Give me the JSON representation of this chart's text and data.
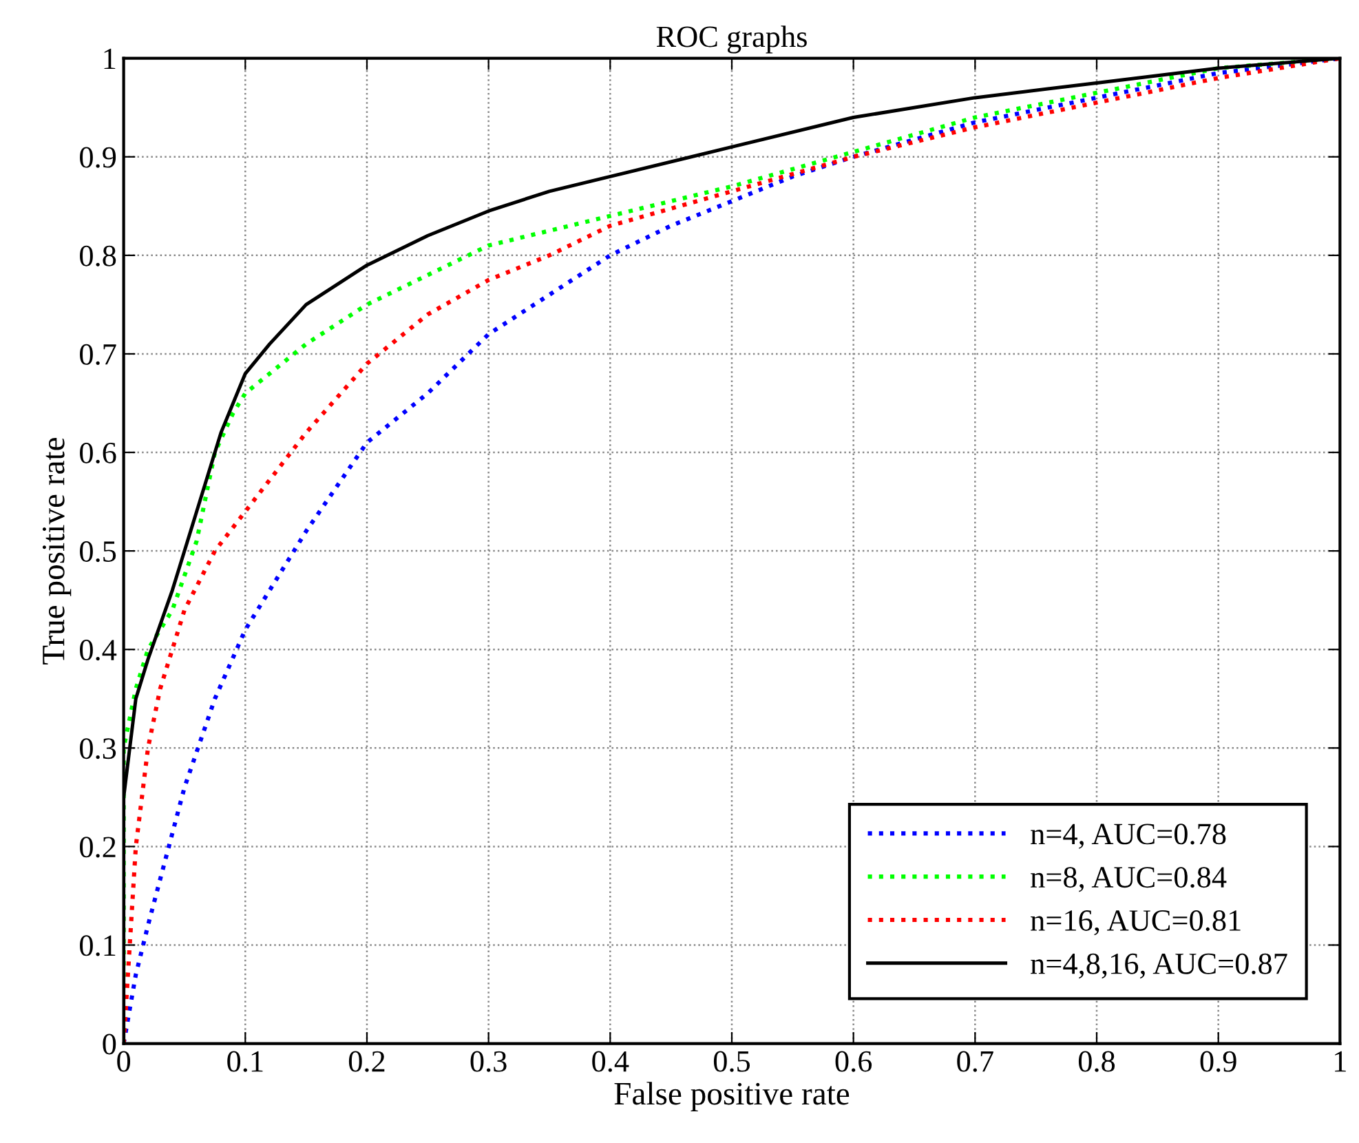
{
  "chart_data": {
    "type": "line",
    "title": "ROC graphs",
    "xlabel": "False positive rate",
    "ylabel": "True positive rate",
    "xlim": [
      0,
      1
    ],
    "ylim": [
      0,
      1
    ],
    "xticks": [
      0,
      0.1,
      0.2,
      0.3,
      0.4,
      0.5,
      0.6,
      0.7,
      0.8,
      0.9,
      1
    ],
    "yticks": [
      0,
      0.1,
      0.2,
      0.3,
      0.4,
      0.5,
      0.6,
      0.7,
      0.8,
      0.9,
      1
    ],
    "grid": true,
    "legend": "bottom right",
    "marker": "none",
    "series": [
      {
        "name": "n=4, AUC=0.78",
        "color": "#0000ff",
        "line_style": "dotted",
        "x": [
          0,
          0.01,
          0.02,
          0.05,
          0.075,
          0.1,
          0.15,
          0.2,
          0.25,
          0.3,
          0.35,
          0.4,
          0.45,
          0.5,
          0.55,
          0.6,
          0.7,
          0.8,
          0.9,
          1
        ],
        "values": [
          0,
          0.07,
          0.12,
          0.26,
          0.35,
          0.42,
          0.52,
          0.61,
          0.66,
          0.72,
          0.76,
          0.8,
          0.83,
          0.855,
          0.88,
          0.9,
          0.935,
          0.96,
          0.985,
          1
        ]
      },
      {
        "name": "n=8, AUC=0.84",
        "color": "#00ff00",
        "line_style": "dotted",
        "x": [
          0,
          0,
          0.01,
          0.02,
          0.04,
          0.06,
          0.075,
          0.09,
          0.1,
          0.15,
          0.2,
          0.25,
          0.3,
          0.35,
          0.4,
          0.5,
          0.6,
          0.7,
          0.8,
          0.9,
          1
        ],
        "values": [
          0,
          0.3,
          0.36,
          0.4,
          0.44,
          0.51,
          0.6,
          0.64,
          0.66,
          0.71,
          0.75,
          0.78,
          0.81,
          0.825,
          0.84,
          0.87,
          0.905,
          0.94,
          0.965,
          0.99,
          1
        ]
      },
      {
        "name": "n=16, AUC=0.81",
        "color": "#ff0000",
        "line_style": "dotted",
        "x": [
          0,
          0.005,
          0.01,
          0.02,
          0.03,
          0.05,
          0.075,
          0.1,
          0.15,
          0.2,
          0.25,
          0.3,
          0.35,
          0.4,
          0.5,
          0.6,
          0.7,
          0.8,
          0.9,
          1
        ],
        "values": [
          0,
          0.1,
          0.2,
          0.3,
          0.36,
          0.44,
          0.5,
          0.54,
          0.62,
          0.69,
          0.74,
          0.775,
          0.8,
          0.83,
          0.865,
          0.9,
          0.93,
          0.955,
          0.98,
          1
        ]
      },
      {
        "name": "n=4,8,16, AUC=0.87",
        "color": "#000000",
        "line_style": "solid",
        "x": [
          0,
          0,
          0.005,
          0.01,
          0.02,
          0.04,
          0.06,
          0.08,
          0.1,
          0.12,
          0.15,
          0.2,
          0.25,
          0.3,
          0.35,
          0.4,
          0.5,
          0.6,
          0.7,
          0.8,
          0.9,
          1
        ],
        "values": [
          0,
          0.25,
          0.3,
          0.35,
          0.39,
          0.46,
          0.54,
          0.62,
          0.68,
          0.71,
          0.75,
          0.79,
          0.82,
          0.845,
          0.865,
          0.88,
          0.91,
          0.94,
          0.96,
          0.975,
          0.99,
          1
        ]
      }
    ]
  }
}
